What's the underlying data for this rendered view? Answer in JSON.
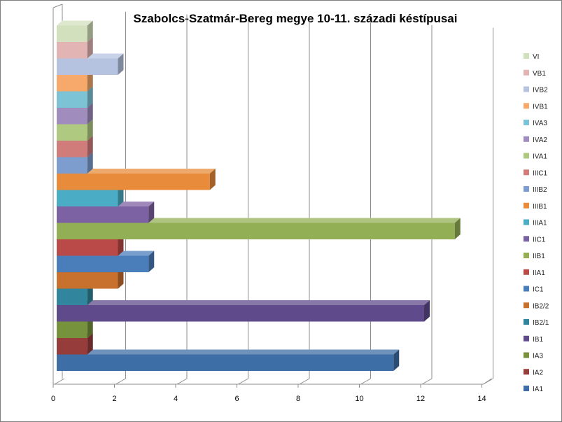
{
  "chart_data": {
    "type": "bar",
    "orientation": "horizontal",
    "three_d": true,
    "title": "Szabolcs-Szatmár-Bereg  megye 10-11. századi késtípusai",
    "xlabel": "",
    "ylabel": "",
    "xlim": [
      0,
      14
    ],
    "x_ticks": [
      "0",
      "2",
      "4",
      "6",
      "8",
      "10",
      "12",
      "14"
    ],
    "grid": true,
    "legend_position": "right",
    "series": [
      {
        "name": "IA1",
        "value": 11,
        "color": "#3e6ea6"
      },
      {
        "name": "IA2",
        "value": 1,
        "color": "#963c3a"
      },
      {
        "name": "IA3",
        "value": 1,
        "color": "#76923c"
      },
      {
        "name": "IB1",
        "value": 12,
        "color": "#5f4b8b"
      },
      {
        "name": "IB2/1",
        "value": 1,
        "color": "#31859c"
      },
      {
        "name": "IB2/2",
        "value": 2,
        "color": "#c8702e"
      },
      {
        "name": "IC1",
        "value": 3,
        "color": "#4a7ebb"
      },
      {
        "name": "IIA1",
        "value": 2,
        "color": "#b94a48"
      },
      {
        "name": "IIB1",
        "value": 13,
        "color": "#93af55"
      },
      {
        "name": "IIC1",
        "value": 3,
        "color": "#7d62a3"
      },
      {
        "name": "IIIA1",
        "value": 2,
        "color": "#4aacc5"
      },
      {
        "name": "IIIB1",
        "value": 5,
        "color": "#e88c3c"
      },
      {
        "name": "IIIB2",
        "value": 1,
        "color": "#7d9dcf"
      },
      {
        "name": "IIIC1",
        "value": 1,
        "color": "#d07c7b"
      },
      {
        "name": "IVA1",
        "value": 1,
        "color": "#afc981"
      },
      {
        "name": "IVA2",
        "value": 1,
        "color": "#a08cbd"
      },
      {
        "name": "IVA3",
        "value": 1,
        "color": "#7cc3d6"
      },
      {
        "name": "IVB1",
        "value": 1,
        "color": "#f6a96a"
      },
      {
        "name": "IVB2",
        "value": 2,
        "color": "#b6c3e0"
      },
      {
        "name": "VB1",
        "value": 1,
        "color": "#e2b5b4"
      },
      {
        "name": "VI",
        "value": 1,
        "color": "#d3e0bd"
      }
    ]
  }
}
